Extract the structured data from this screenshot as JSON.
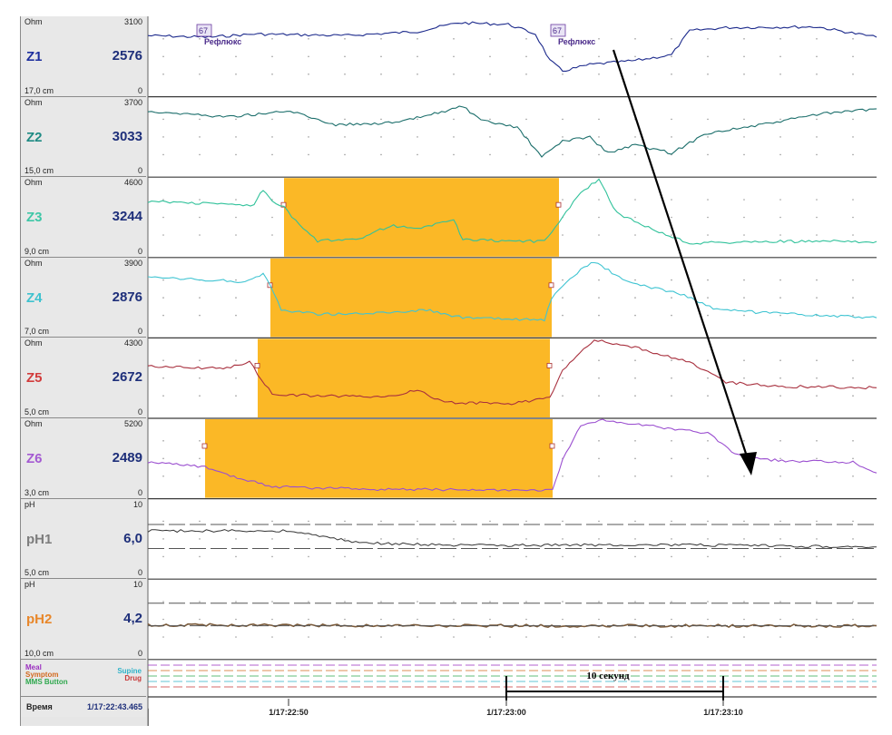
{
  "channels": [
    {
      "unit": "Ohm",
      "max": "3100",
      "name": "Z1",
      "value": "2576",
      "position": "17,0 cm",
      "min": "0",
      "color": "#1e2f9e",
      "trace": "#1c2a8c"
    },
    {
      "unit": "Ohm",
      "max": "3700",
      "name": "Z2",
      "value": "3033",
      "position": "15,0 cm",
      "min": "0",
      "color": "#1f8b84",
      "trace": "#1b6e6b"
    },
    {
      "unit": "Ohm",
      "max": "4600",
      "name": "Z3",
      "value": "3244",
      "position": "9,0 cm",
      "min": "0",
      "color": "#3fc7a7",
      "trace": "#31c29b"
    },
    {
      "unit": "Ohm",
      "max": "3900",
      "name": "Z4",
      "value": "2876",
      "position": "7,0 cm",
      "min": "0",
      "color": "#3fc2cf",
      "trace": "#3fc4d2"
    },
    {
      "unit": "Ohm",
      "max": "4300",
      "name": "Z5",
      "value": "2672",
      "position": "5,0 cm",
      "min": "0",
      "color": "#d23c3c",
      "trace": "#a8303e"
    },
    {
      "unit": "Ohm",
      "max": "5200",
      "name": "Z6",
      "value": "2489",
      "position": "3,0 cm",
      "min": "0",
      "color": "#a45ad2",
      "trace": "#9b4fd0"
    },
    {
      "unit": "pH",
      "max": "10",
      "name": "pH1",
      "value": "6,0",
      "position": "5,0 cm",
      "min": "0",
      "color": "#7d7d7d",
      "trace": "#333333"
    },
    {
      "unit": "pH",
      "max": "10",
      "name": "pH2",
      "value": "4,2",
      "position": "10,0 cm",
      "min": "0",
      "color": "#e8872a",
      "trace": "#7a5a3a"
    }
  ],
  "legend": {
    "meal": "Meal",
    "symptom": "Symptom",
    "mms_button": "MMS Button",
    "supine": "Supine",
    "drug": "Drug",
    "colors": {
      "meal": "#9b2fc0",
      "symptom": "#d2691e",
      "mms": "#2fa84e",
      "supine": "#2fb3c9",
      "drug": "#c83a3a"
    }
  },
  "time_row": {
    "label": "Время",
    "value": "1/17:22:43.465"
  },
  "time_ticks": [
    "1/17:22:50",
    "1/17:23:00",
    "1/17:23:10"
  ],
  "markers": [
    {
      "code": "67",
      "text": "Рефлюкс"
    },
    {
      "code": "67",
      "text": "Рефлюкс"
    }
  ],
  "scale_bar_label": "10 секунд",
  "bolus_color": "#fbb826"
}
